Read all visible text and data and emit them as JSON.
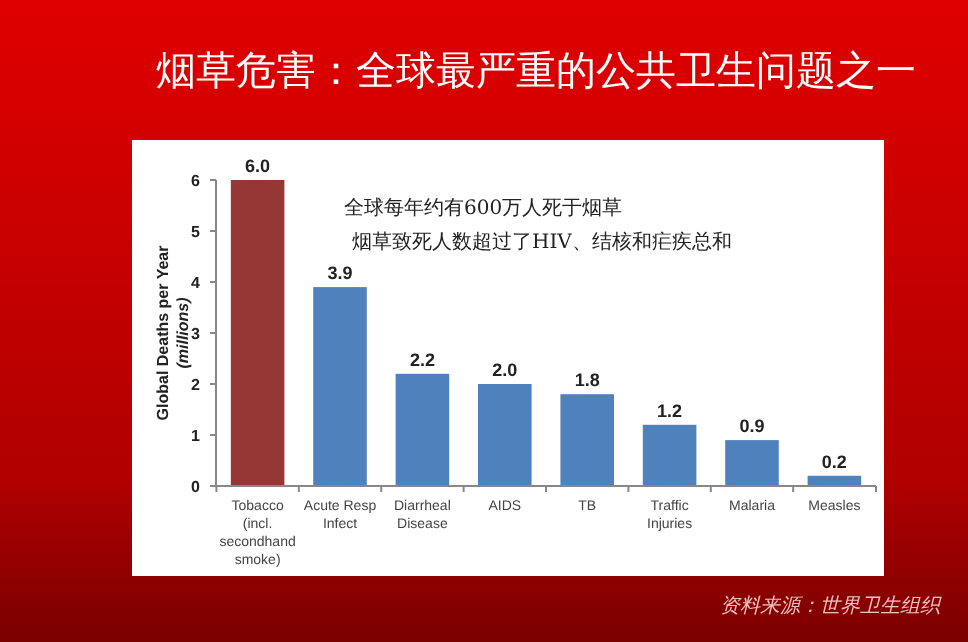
{
  "chart_data": {
    "type": "bar",
    "title": "烟草危害：全球最严重的公共卫生问题之一",
    "ylabel": "Global Deaths per Year (millions)",
    "categories": [
      "Tobacco (incl. secondhand smoke)",
      "Acute Resp Infect",
      "Diarrheal Disease",
      "AIDS",
      "TB",
      "Traffic Injuries",
      "Malaria",
      "Measles"
    ],
    "values": [
      6.0,
      3.9,
      2.2,
      2.0,
      1.8,
      1.2,
      0.9,
      0.2
    ],
    "colors": [
      "#953735",
      "#4f81bd",
      "#4f81bd",
      "#4f81bd",
      "#4f81bd",
      "#4f81bd",
      "#4f81bd",
      "#4f81bd"
    ],
    "value_labels": [
      "6.0",
      "3.9",
      "2.2",
      "2.0",
      "1.8",
      "1.2",
      "0.9",
      "0.2"
    ],
    "ylim": [
      0,
      6
    ],
    "yticks": [
      0,
      1,
      2,
      3,
      4,
      5,
      6
    ],
    "grid": false,
    "annotations": [
      "全球每年约有600万人死于烟草",
      "烟草致死人数超过了HIV、结核和疟疾总和",
      "资料来源：世界卫生组织"
    ]
  }
}
